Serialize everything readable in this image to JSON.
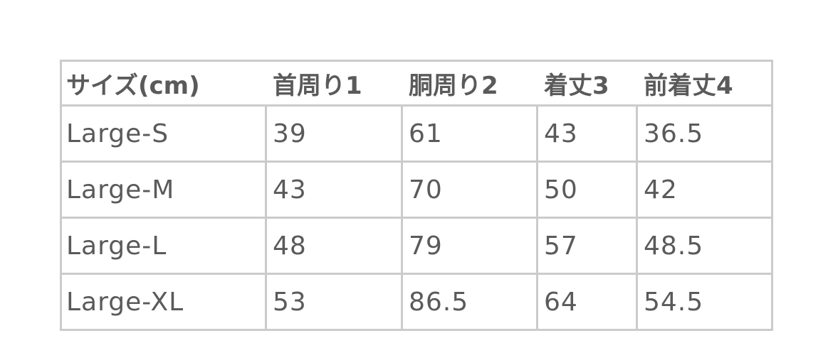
{
  "table": {
    "headers": [
      "サイズ(cm)",
      "首周り1",
      "胴周り2",
      "着丈3",
      "前着丈4"
    ],
    "rows": [
      [
        "Large-S",
        "39",
        "61",
        "43",
        "36.5"
      ],
      [
        "Large-M",
        "43",
        "70",
        "50",
        "42"
      ],
      [
        "Large-L",
        "48",
        "79",
        "57",
        "48.5"
      ],
      [
        "Large-XL",
        "53",
        "86.5",
        "64",
        "54.5"
      ]
    ]
  }
}
